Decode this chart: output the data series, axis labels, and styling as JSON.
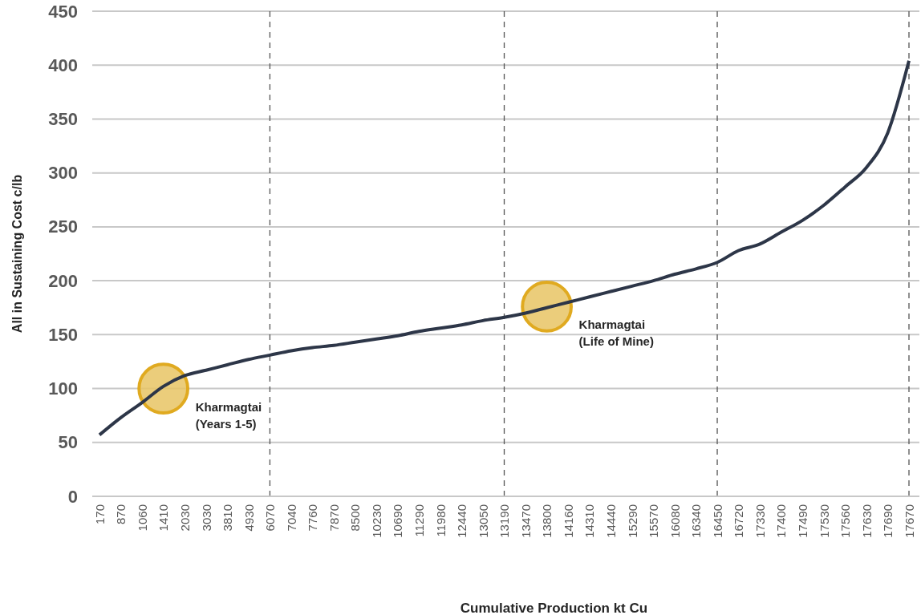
{
  "chart_data": {
    "type": "line",
    "xlabel": "Cumulative Production kt Cu",
    "ylabel": "All in Sustaining Cost c/lb",
    "categories": [
      "170",
      "870",
      "1060",
      "1410",
      "2030",
      "3030",
      "3810",
      "4930",
      "6070",
      "7040",
      "7760",
      "7870",
      "8500",
      "10230",
      "10690",
      "11290",
      "11980",
      "12440",
      "13050",
      "13190",
      "13470",
      "13800",
      "14160",
      "14310",
      "14440",
      "15290",
      "15570",
      "16080",
      "16340",
      "16450",
      "16720",
      "17330",
      "17400",
      "17490",
      "17530",
      "17560",
      "17630",
      "17690",
      "17670"
    ],
    "series": [
      {
        "color": "#2d3648",
        "values": [
          57,
          73,
          87,
          102,
          112,
          117,
          122,
          127,
          131,
          135,
          138,
          140,
          143,
          146,
          149,
          153,
          156,
          159,
          163,
          166,
          170,
          175,
          180,
          185,
          190,
          195,
          200,
          206,
          211,
          217,
          228,
          234,
          245,
          256,
          270,
          287,
          305,
          337,
          404
        ]
      },
      {
        "type": "scatter",
        "color": "#e8c464",
        "values": [
          null,
          null,
          null,
          100,
          null,
          null,
          null,
          null,
          null,
          null,
          null,
          null,
          null,
          null,
          null,
          null,
          null,
          null,
          null,
          null,
          null,
          176,
          null,
          null,
          null,
          null,
          null,
          null,
          null,
          null,
          null,
          null,
          null,
          null,
          null,
          null,
          null,
          null,
          null
        ]
      }
    ],
    "ylim": [
      0,
      450
    ],
    "yticks": [
      0,
      50,
      100,
      150,
      200,
      250,
      300,
      350,
      400,
      450
    ],
    "grid": "y",
    "ref_lines": [
      {
        "axis": "x",
        "value": "6070",
        "color": "#555555",
        "line_style": "dashed"
      },
      {
        "axis": "x",
        "value": "13190",
        "color": "#555555",
        "line_style": "dashed"
      },
      {
        "axis": "x",
        "value": "16450",
        "color": "#555555",
        "line_style": "dashed"
      },
      {
        "axis": "x",
        "value": "17670",
        "color": "#555555",
        "line_style": "dashed"
      }
    ],
    "annotations": [
      {
        "text": "Kharmagtai\n(Years 1-5)",
        "x": "1410",
        "y": 100
      },
      {
        "text": "Kharmagtai\n(Life of Mine)",
        "x": "13800",
        "y": 176
      }
    ]
  }
}
